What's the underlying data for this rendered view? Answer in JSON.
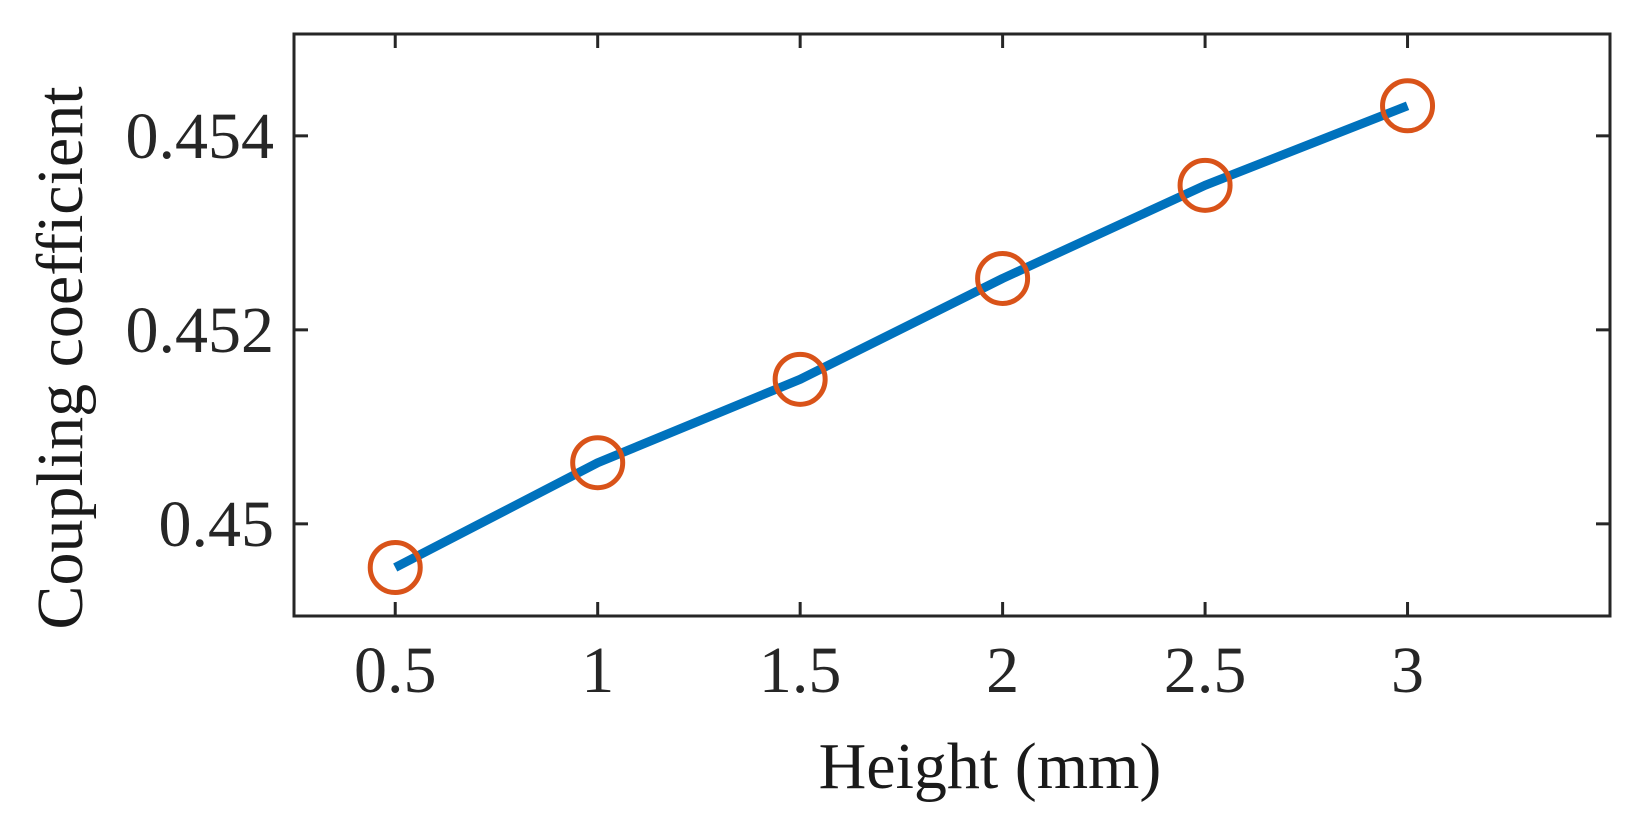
{
  "chart_data": {
    "type": "line",
    "title": "",
    "xlabel": "Height (mm)",
    "ylabel": "Coupling coefficient",
    "xlim": [
      0.25,
      3.5
    ],
    "ylim": [
      0.44905,
      0.45505
    ],
    "xticks": [
      0.5,
      1,
      1.5,
      2,
      2.5,
      3
    ],
    "xtick_labels": [
      "0.5",
      "1",
      "1.5",
      "2",
      "2.5",
      "3"
    ],
    "yticks": [
      0.45,
      0.452,
      0.454
    ],
    "ytick_labels": [
      "0.45",
      "0.452",
      "0.454"
    ],
    "grid": false,
    "legend": "none",
    "series": [
      {
        "x": [
          0.5,
          1,
          1.5,
          2,
          2.5,
          3
        ],
        "y": [
          0.44955,
          0.45063,
          0.45149,
          0.45253,
          0.45349,
          0.45431
        ],
        "line_color": "#0072BD",
        "marker": "circle",
        "marker_color": "#D95319"
      }
    ],
    "axis_color": "#262626"
  }
}
